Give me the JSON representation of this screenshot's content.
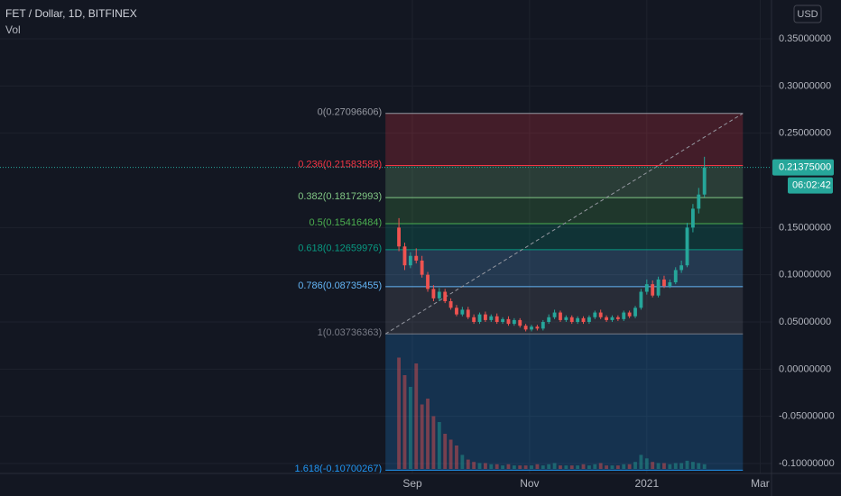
{
  "chart_data": {
    "type": "candlestick",
    "title": "FET / Dollar, 1D, BITFINEX",
    "subtitle": "Vol",
    "currency_button": "USD",
    "up_color": "#26a69a",
    "down_color": "#ef5350",
    "x": [
      -7,
      -4,
      -1,
      2,
      5,
      8,
      11,
      14,
      17,
      20,
      23,
      26,
      29,
      32,
      35,
      38,
      41,
      44,
      47,
      50,
      53,
      56,
      59,
      62,
      65,
      68,
      71,
      74,
      77,
      80,
      83,
      86,
      89,
      92,
      95,
      98,
      101,
      104,
      107,
      110,
      113,
      116,
      119,
      122,
      125,
      128,
      131,
      134,
      137,
      140,
      143,
      146,
      149,
      152
    ],
    "open": [
      0.15,
      0.13,
      0.11,
      0.12,
      0.115,
      0.1,
      0.085,
      0.075,
      0.082,
      0.072,
      0.065,
      0.058,
      0.063,
      0.055,
      0.05,
      0.058,
      0.052,
      0.056,
      0.05,
      0.053,
      0.048,
      0.052,
      0.046,
      0.042,
      0.045,
      0.043,
      0.05,
      0.055,
      0.06,
      0.052,
      0.055,
      0.05,
      0.054,
      0.05,
      0.055,
      0.06,
      0.055,
      0.052,
      0.055,
      0.053,
      0.06,
      0.056,
      0.065,
      0.082,
      0.09,
      0.078,
      0.095,
      0.088,
      0.092,
      0.105,
      0.11,
      0.15,
      0.17,
      0.185
    ],
    "high": [
      0.16,
      0.134,
      0.124,
      0.128,
      0.12,
      0.103,
      0.089,
      0.086,
      0.085,
      0.075,
      0.068,
      0.066,
      0.066,
      0.058,
      0.06,
      0.061,
      0.058,
      0.059,
      0.055,
      0.056,
      0.054,
      0.054,
      0.048,
      0.047,
      0.047,
      0.052,
      0.058,
      0.063,
      0.062,
      0.057,
      0.057,
      0.056,
      0.056,
      0.057,
      0.062,
      0.063,
      0.057,
      0.057,
      0.057,
      0.062,
      0.062,
      0.067,
      0.085,
      0.095,
      0.094,
      0.098,
      0.099,
      0.095,
      0.108,
      0.115,
      0.155,
      0.175,
      0.192,
      0.225
    ],
    "low": [
      0.125,
      0.105,
      0.107,
      0.112,
      0.097,
      0.082,
      0.072,
      0.072,
      0.07,
      0.063,
      0.056,
      0.056,
      0.053,
      0.048,
      0.048,
      0.05,
      0.05,
      0.048,
      0.048,
      0.046,
      0.046,
      0.044,
      0.04,
      0.04,
      0.041,
      0.041,
      0.048,
      0.053,
      0.05,
      0.05,
      0.048,
      0.048,
      0.048,
      0.048,
      0.053,
      0.053,
      0.05,
      0.05,
      0.051,
      0.051,
      0.054,
      0.054,
      0.063,
      0.079,
      0.076,
      0.076,
      0.086,
      0.086,
      0.09,
      0.102,
      0.108,
      0.145,
      0.165,
      0.182
    ],
    "close": [
      0.13,
      0.11,
      0.12,
      0.115,
      0.1,
      0.085,
      0.075,
      0.082,
      0.072,
      0.065,
      0.058,
      0.063,
      0.055,
      0.05,
      0.058,
      0.052,
      0.056,
      0.05,
      0.053,
      0.048,
      0.052,
      0.046,
      0.042,
      0.045,
      0.043,
      0.05,
      0.055,
      0.06,
      0.052,
      0.055,
      0.05,
      0.054,
      0.05,
      0.055,
      0.06,
      0.055,
      0.052,
      0.055,
      0.053,
      0.06,
      0.056,
      0.065,
      0.082,
      0.09,
      0.078,
      0.095,
      0.088,
      0.092,
      0.105,
      0.11,
      0.15,
      0.17,
      0.185,
      0.21375
    ],
    "volume": [
      95,
      80,
      70,
      90,
      55,
      60,
      45,
      40,
      30,
      25,
      20,
      12,
      8,
      6,
      5,
      5,
      4,
      4,
      3,
      4,
      3,
      3,
      3,
      3,
      4,
      3,
      4,
      5,
      3,
      3,
      3,
      3,
      4,
      3,
      4,
      5,
      3,
      3,
      3,
      4,
      4,
      6,
      12,
      9,
      6,
      5,
      5,
      4,
      5,
      5,
      7,
      6,
      5,
      4
    ],
    "xlim": [
      -214.6,
      186.9
    ],
    "xticks": [
      {
        "value": 0,
        "label": "Sep"
      },
      {
        "value": 61,
        "label": "Nov"
      },
      {
        "value": 122,
        "label": "2021"
      },
      {
        "value": 181,
        "label": "Mar"
      }
    ],
    "ylim": [
      -0.1105,
      0.3911
    ],
    "yticks": [
      {
        "value": 0.35,
        "label": "0.35000000"
      },
      {
        "value": 0.3,
        "label": "0.30000000"
      },
      {
        "value": 0.25,
        "label": "0.25000000"
      },
      {
        "value": 0.15,
        "label": "0.15000000"
      },
      {
        "value": 0.1,
        "label": "0.10000000"
      },
      {
        "value": 0.05,
        "label": "0.05000000"
      },
      {
        "value": 0,
        "label": "0.00000000"
      },
      {
        "value": -0.05,
        "label": "-0.05000000"
      },
      {
        "value": -0.1,
        "label": "-0.10000000"
      }
    ],
    "last_price": {
      "value": 0.21375,
      "label": "0.21375000",
      "countdown": "06:02:42"
    },
    "fib_x": [
      -14,
      172
    ],
    "fib_levels": [
      {
        "label": "0(0.27096606)",
        "price": 0.27096606,
        "color": "#9598a1"
      },
      {
        "label": "0.236(0.21583588)",
        "price": 0.21583588,
        "color": "#f23645"
      },
      {
        "label": "0.382(0.18172993)",
        "price": 0.18172993,
        "color": "#81c784"
      },
      {
        "label": "0.5(0.15416484)",
        "price": 0.15416484,
        "color": "#4caf50"
      },
      {
        "label": "0.618(0.12659976)",
        "price": 0.12659976,
        "color": "#089981"
      },
      {
        "label": "0.786(0.08735455)",
        "price": 0.08735455,
        "color": "#64b5f6"
      },
      {
        "label": "1(0.03736363)",
        "price": 0.03736363,
        "color": "#787b86"
      },
      {
        "label": "1.618(-0.10700267)",
        "price": -0.10700267,
        "color": "#2196f3"
      }
    ]
  }
}
